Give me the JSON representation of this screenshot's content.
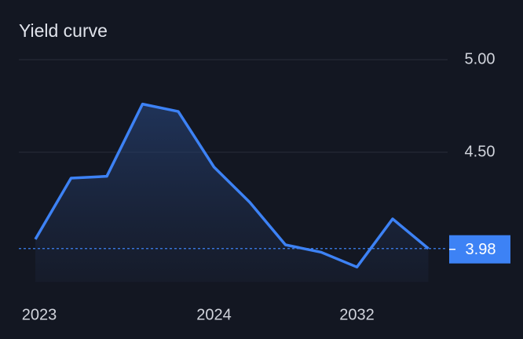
{
  "chart_data": {
    "type": "line",
    "title": "Yield curve",
    "categories": [
      "2023",
      null,
      null,
      null,
      null,
      "2024",
      null,
      null,
      null,
      "2032",
      null,
      null
    ],
    "values": [
      4.03,
      4.36,
      4.37,
      4.76,
      4.72,
      4.42,
      4.23,
      4.0,
      3.96,
      3.88,
      4.14,
      3.98
    ],
    "color": "#3d82f5",
    "ylim": [
      3.8,
      5.0
    ],
    "yticks": [
      {
        "value": 4.5,
        "label": "4.50"
      },
      {
        "value": 5,
        "label": "5.00"
      }
    ],
    "grid": true
  }
}
